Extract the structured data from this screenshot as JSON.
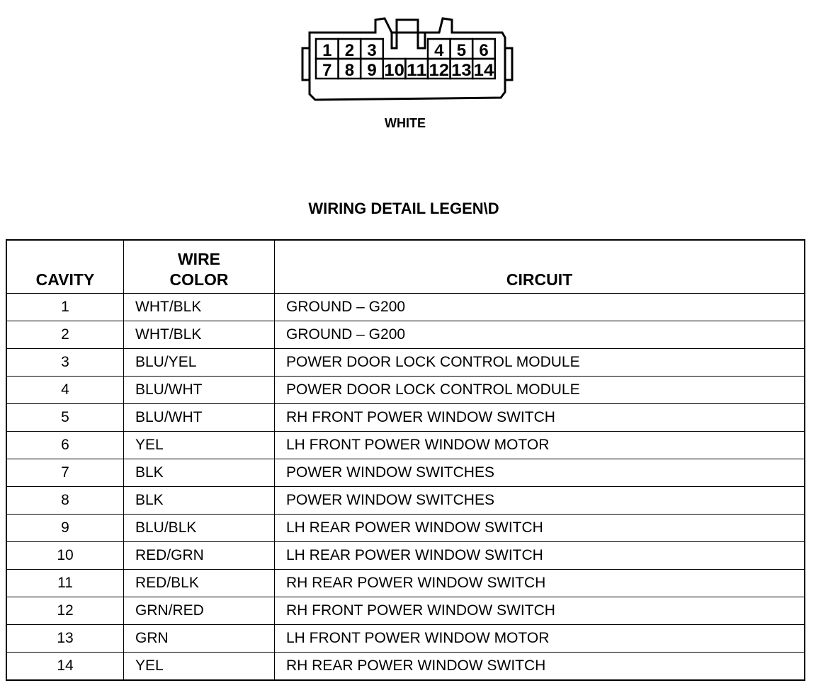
{
  "connector": {
    "color_label": "WHITE",
    "top_row": [
      "1",
      "2",
      "3",
      "4",
      "5",
      "6"
    ],
    "bottom_row": [
      "7",
      "8",
      "9",
      "10",
      "11",
      "12",
      "13",
      "14"
    ]
  },
  "legend": {
    "title": "WIRING DETAIL LEGEN\\D",
    "headers": {
      "cavity": "CAVITY",
      "wire_color_1": "WIRE",
      "wire_color_2": "COLOR",
      "circuit": "CIRCUIT"
    },
    "rows": [
      {
        "cavity": "1",
        "wire": "WHT/BLK",
        "circuit": "GROUND – G200"
      },
      {
        "cavity": "2",
        "wire": "WHT/BLK",
        "circuit": "GROUND – G200"
      },
      {
        "cavity": "3",
        "wire": "BLU/YEL",
        "circuit": "POWER DOOR LOCK CONTROL MODULE"
      },
      {
        "cavity": "4",
        "wire": "BLU/WHT",
        "circuit": "POWER DOOR LOCK CONTROL MODULE"
      },
      {
        "cavity": "5",
        "wire": "BLU/WHT",
        "circuit": "RH FRONT POWER WINDOW SWITCH"
      },
      {
        "cavity": "6",
        "wire": "YEL",
        "circuit": "LH FRONT POWER WINDOW MOTOR"
      },
      {
        "cavity": "7",
        "wire": "BLK",
        "circuit": "POWER WINDOW SWITCHES"
      },
      {
        "cavity": "8",
        "wire": "BLK",
        "circuit": "POWER WINDOW SWITCHES"
      },
      {
        "cavity": "9",
        "wire": "BLU/BLK",
        "circuit": "LH REAR POWER WINDOW SWITCH"
      },
      {
        "cavity": "10",
        "wire": "RED/GRN",
        "circuit": "LH REAR POWER WINDOW SWITCH"
      },
      {
        "cavity": "11",
        "wire": "RED/BLK",
        "circuit": "RH REAR POWER WINDOW SWITCH"
      },
      {
        "cavity": "12",
        "wire": "GRN/RED",
        "circuit": "RH FRONT POWER WINDOW SWITCH"
      },
      {
        "cavity": "13",
        "wire": "GRN",
        "circuit": "LH FRONT POWER WINDOW MOTOR"
      },
      {
        "cavity": "14",
        "wire": "YEL",
        "circuit": "RH REAR POWER WINDOW SWITCH"
      }
    ]
  }
}
